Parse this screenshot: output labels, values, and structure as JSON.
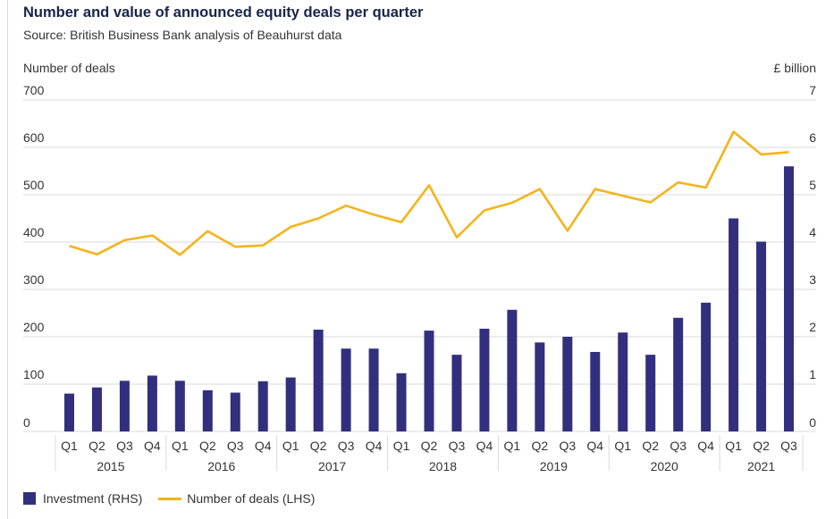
{
  "title": "Number and value of announced equity deals per quarter",
  "subtitle": "Source: British Business Bank analysis of Beauhurst data",
  "colors": {
    "bar": "#322f7e",
    "line": "#f4b41a",
    "grid": "#d9d9d9",
    "title": "#16244a"
  },
  "chart_data": {
    "type": "bar",
    "title": "Number and value of announced equity deals per quarter",
    "subtitle": "Source: British Business Bank analysis of Beauhurst data",
    "ylabel_left": "Number of deals",
    "ylabel_right": "£ billion",
    "ylim_left": [
      0,
      700
    ],
    "ylim_right": [
      0,
      7
    ],
    "yticks_left": [
      "0",
      "100",
      "200",
      "300",
      "400",
      "500",
      "600",
      "700"
    ],
    "yticks_right": [
      "0",
      "1",
      "2",
      "3",
      "4",
      "5",
      "6",
      "7"
    ],
    "grid": true,
    "legend_position": "bottom-left",
    "categories": [
      "Q1",
      "Q2",
      "Q3",
      "Q4",
      "Q1",
      "Q2",
      "Q3",
      "Q4",
      "Q1",
      "Q2",
      "Q3",
      "Q4",
      "Q1",
      "Q2",
      "Q3",
      "Q4",
      "Q1",
      "Q2",
      "Q3",
      "Q4",
      "Q1",
      "Q2",
      "Q3",
      "Q4",
      "Q1",
      "Q2",
      "Q3"
    ],
    "years": [
      {
        "label": "2015",
        "quarters": 4
      },
      {
        "label": "2016",
        "quarters": 4
      },
      {
        "label": "2017",
        "quarters": 4
      },
      {
        "label": "2018",
        "quarters": 4
      },
      {
        "label": "2019",
        "quarters": 4
      },
      {
        "label": "2020",
        "quarters": 4
      },
      {
        "label": "2021",
        "quarters": 3
      }
    ],
    "series": [
      {
        "name": "Investment (RHS)",
        "type": "bar",
        "axis": "right",
        "values": [
          0.8,
          0.93,
          1.07,
          1.18,
          1.07,
          0.87,
          0.82,
          1.06,
          1.14,
          2.15,
          1.75,
          1.75,
          1.23,
          2.13,
          1.62,
          2.17,
          2.57,
          1.88,
          2.0,
          1.68,
          2.09,
          1.62,
          2.4,
          2.72,
          4.5,
          4.01,
          5.6
        ]
      },
      {
        "name": "Number of deals (LHS)",
        "type": "line",
        "axis": "left",
        "values": [
          392,
          374,
          404,
          414,
          373,
          423,
          390,
          393,
          432,
          450,
          477,
          458,
          442,
          520,
          410,
          467,
          483,
          512,
          424,
          512,
          498,
          484,
          526,
          515,
          633,
          585,
          590
        ]
      }
    ]
  }
}
